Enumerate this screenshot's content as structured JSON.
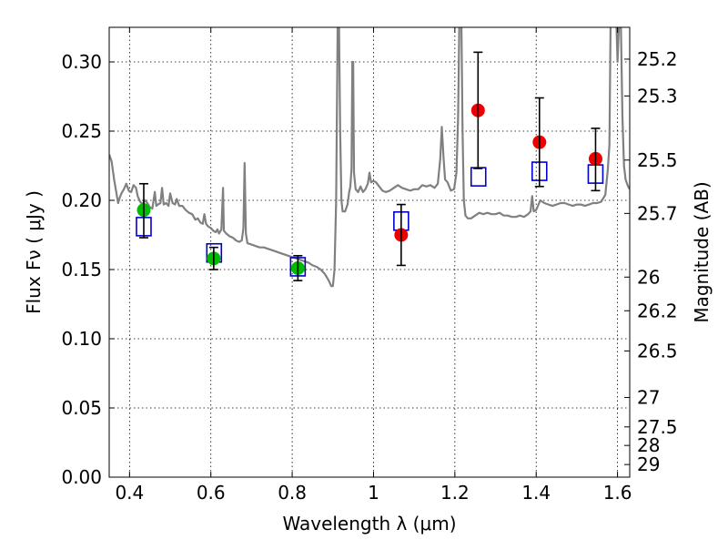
{
  "chart_data": {
    "type": "scatter",
    "xlabel": "Wavelength  λ (μm)",
    "ylabel": "Flux  Fν  ( μJy )",
    "ylabel_right": "Magnitude (AB)",
    "xlim": [
      0.35,
      1.63
    ],
    "ylim": [
      0.0,
      0.325
    ],
    "grid": true,
    "x_ticks": [
      {
        "value": 0.4,
        "label": "0.4"
      },
      {
        "value": 0.6,
        "label": "0.6"
      },
      {
        "value": 0.8,
        "label": "0.8"
      },
      {
        "value": 1.0,
        "label": "1"
      },
      {
        "value": 1.2,
        "label": "1.2"
      },
      {
        "value": 1.4,
        "label": "1.4"
      },
      {
        "value": 1.6,
        "label": "1.6"
      }
    ],
    "y_ticks": [
      {
        "value": 0.0,
        "label": "0.00"
      },
      {
        "value": 0.05,
        "label": "0.05"
      },
      {
        "value": 0.1,
        "label": "0.10"
      },
      {
        "value": 0.15,
        "label": "0.15"
      },
      {
        "value": 0.2,
        "label": "0.20"
      },
      {
        "value": 0.25,
        "label": "0.25"
      },
      {
        "value": 0.3,
        "label": "0.30"
      }
    ],
    "right_ticks": [
      {
        "value": 25.2,
        "label": "25.2"
      },
      {
        "value": 25.3,
        "label": "25.3"
      },
      {
        "value": 25.5,
        "label": "25.5"
      },
      {
        "value": 25.7,
        "label": "25.7"
      },
      {
        "value": 26.0,
        "label": "26"
      },
      {
        "value": 26.2,
        "label": "26.2"
      },
      {
        "value": 26.5,
        "label": "26.5"
      },
      {
        "value": 27.0,
        "label": "27"
      },
      {
        "value": 27.5,
        "label": "27.5"
      },
      {
        "value": 28.0,
        "label": "28"
      },
      {
        "value": 29.0,
        "label": "29"
      }
    ],
    "series": [
      {
        "kind": "line",
        "color": "#808080",
        "points": [
          [
            0.35,
            0.233
          ],
          [
            0.356,
            0.228
          ],
          [
            0.362,
            0.215
          ],
          [
            0.368,
            0.205
          ],
          [
            0.372,
            0.198
          ],
          [
            0.376,
            0.202
          ],
          [
            0.38,
            0.205
          ],
          [
            0.386,
            0.208
          ],
          [
            0.392,
            0.212
          ],
          [
            0.398,
            0.207
          ],
          [
            0.404,
            0.206
          ],
          [
            0.41,
            0.211
          ],
          [
            0.416,
            0.209
          ],
          [
            0.42,
            0.203
          ],
          [
            0.426,
            0.199
          ],
          [
            0.432,
            0.197
          ],
          [
            0.438,
            0.2
          ],
          [
            0.444,
            0.198
          ],
          [
            0.45,
            0.195
          ],
          [
            0.456,
            0.194
          ],
          [
            0.462,
            0.206
          ],
          [
            0.466,
            0.196
          ],
          [
            0.47,
            0.197
          ],
          [
            0.476,
            0.198
          ],
          [
            0.48,
            0.209
          ],
          [
            0.484,
            0.197
          ],
          [
            0.49,
            0.198
          ],
          [
            0.496,
            0.196
          ],
          [
            0.5,
            0.205
          ],
          [
            0.506,
            0.198
          ],
          [
            0.512,
            0.197
          ],
          [
            0.516,
            0.201
          ],
          [
            0.522,
            0.196
          ],
          [
            0.53,
            0.196
          ],
          [
            0.538,
            0.193
          ],
          [
            0.546,
            0.191
          ],
          [
            0.554,
            0.19
          ],
          [
            0.562,
            0.186
          ],
          [
            0.568,
            0.187
          ],
          [
            0.574,
            0.184
          ],
          [
            0.58,
            0.183
          ],
          [
            0.584,
            0.19
          ],
          [
            0.588,
            0.183
          ],
          [
            0.594,
            0.181
          ],
          [
            0.6,
            0.18
          ],
          [
            0.606,
            0.178
          ],
          [
            0.612,
            0.177
          ],
          [
            0.616,
            0.179
          ],
          [
            0.62,
            0.176
          ],
          [
            0.626,
            0.179
          ],
          [
            0.63,
            0.209
          ],
          [
            0.632,
            0.178
          ],
          [
            0.638,
            0.176
          ],
          [
            0.646,
            0.174
          ],
          [
            0.654,
            0.173
          ],
          [
            0.662,
            0.171
          ],
          [
            0.67,
            0.17
          ],
          [
            0.676,
            0.171
          ],
          [
            0.68,
            0.18
          ],
          [
            0.683,
            0.227
          ],
          [
            0.686,
            0.176
          ],
          [
            0.69,
            0.169
          ],
          [
            0.7,
            0.168
          ],
          [
            0.71,
            0.167
          ],
          [
            0.72,
            0.166
          ],
          [
            0.73,
            0.166
          ],
          [
            0.74,
            0.165
          ],
          [
            0.75,
            0.164
          ],
          [
            0.76,
            0.163
          ],
          [
            0.77,
            0.162
          ],
          [
            0.78,
            0.161
          ],
          [
            0.79,
            0.16
          ],
          [
            0.8,
            0.159
          ],
          [
            0.81,
            0.158
          ],
          [
            0.82,
            0.157
          ],
          [
            0.83,
            0.156
          ],
          [
            0.84,
            0.155
          ],
          [
            0.85,
            0.153
          ],
          [
            0.86,
            0.152
          ],
          [
            0.87,
            0.15
          ],
          [
            0.88,
            0.147
          ],
          [
            0.89,
            0.142
          ],
          [
            0.896,
            0.138
          ],
          [
            0.9,
            0.138
          ],
          [
            0.904,
            0.15
          ],
          [
            0.908,
            0.2
          ],
          [
            0.912,
            0.33
          ],
          [
            0.915,
            0.33
          ],
          [
            0.918,
            0.25
          ],
          [
            0.921,
            0.2
          ],
          [
            0.924,
            0.192
          ],
          [
            0.93,
            0.192
          ],
          [
            0.936,
            0.197
          ],
          [
            0.94,
            0.206
          ],
          [
            0.943,
            0.21
          ],
          [
            0.946,
            0.223
          ],
          [
            0.948,
            0.3
          ],
          [
            0.95,
            0.3
          ],
          [
            0.952,
            0.22
          ],
          [
            0.956,
            0.208
          ],
          [
            0.962,
            0.206
          ],
          [
            0.968,
            0.21
          ],
          [
            0.974,
            0.206
          ],
          [
            0.98,
            0.208
          ],
          [
            0.986,
            0.212
          ],
          [
            0.99,
            0.22
          ],
          [
            0.994,
            0.213
          ],
          [
            1.0,
            0.214
          ],
          [
            1.006,
            0.213
          ],
          [
            1.014,
            0.21
          ],
          [
            1.022,
            0.207
          ],
          [
            1.03,
            0.206
          ],
          [
            1.04,
            0.207
          ],
          [
            1.05,
            0.209
          ],
          [
            1.06,
            0.211
          ],
          [
            1.07,
            0.209
          ],
          [
            1.08,
            0.208
          ],
          [
            1.09,
            0.207
          ],
          [
            1.1,
            0.208
          ],
          [
            1.11,
            0.208
          ],
          [
            1.12,
            0.211
          ],
          [
            1.13,
            0.21
          ],
          [
            1.14,
            0.211
          ],
          [
            1.15,
            0.209
          ],
          [
            1.158,
            0.212
          ],
          [
            1.164,
            0.23
          ],
          [
            1.168,
            0.253
          ],
          [
            1.172,
            0.232
          ],
          [
            1.176,
            0.215
          ],
          [
            1.182,
            0.213
          ],
          [
            1.19,
            0.207
          ],
          [
            1.198,
            0.208
          ],
          [
            1.204,
            0.22
          ],
          [
            1.208,
            0.26
          ],
          [
            1.211,
            0.33
          ],
          [
            1.214,
            0.33
          ],
          [
            1.216,
            0.33
          ],
          [
            1.219,
            0.25
          ],
          [
            1.222,
            0.2
          ],
          [
            1.226,
            0.189
          ],
          [
            1.232,
            0.187
          ],
          [
            1.24,
            0.187
          ],
          [
            1.25,
            0.189
          ],
          [
            1.26,
            0.191
          ],
          [
            1.27,
            0.19
          ],
          [
            1.28,
            0.191
          ],
          [
            1.29,
            0.19
          ],
          [
            1.3,
            0.19
          ],
          [
            1.31,
            0.191
          ],
          [
            1.32,
            0.189
          ],
          [
            1.33,
            0.189
          ],
          [
            1.34,
            0.188
          ],
          [
            1.35,
            0.188
          ],
          [
            1.36,
            0.189
          ],
          [
            1.37,
            0.188
          ],
          [
            1.38,
            0.19
          ],
          [
            1.386,
            0.192
          ],
          [
            1.39,
            0.203
          ],
          [
            1.394,
            0.192
          ],
          [
            1.4,
            0.193
          ],
          [
            1.41,
            0.2
          ],
          [
            1.42,
            0.198
          ],
          [
            1.43,
            0.197
          ],
          [
            1.44,
            0.196
          ],
          [
            1.45,
            0.197
          ],
          [
            1.46,
            0.198
          ],
          [
            1.47,
            0.198
          ],
          [
            1.48,
            0.197
          ],
          [
            1.49,
            0.196
          ],
          [
            1.5,
            0.197
          ],
          [
            1.51,
            0.197
          ],
          [
            1.52,
            0.196
          ],
          [
            1.53,
            0.197
          ],
          [
            1.54,
            0.198
          ],
          [
            1.55,
            0.198
          ],
          [
            1.56,
            0.199
          ],
          [
            1.57,
            0.204
          ],
          [
            1.576,
            0.222
          ],
          [
            1.58,
            0.24
          ],
          [
            1.583,
            0.33
          ],
          [
            1.59,
            0.33
          ],
          [
            1.597,
            0.33
          ],
          [
            1.6,
            0.3
          ],
          [
            1.604,
            0.33
          ],
          [
            1.608,
            0.33
          ],
          [
            1.612,
            0.26
          ],
          [
            1.616,
            0.225
          ],
          [
            1.62,
            0.215
          ],
          [
            1.626,
            0.21
          ],
          [
            1.63,
            0.208
          ]
        ]
      },
      {
        "kind": "squares",
        "color": "#0000cc",
        "points": [
          [
            0.435,
            0.181
          ],
          [
            0.608,
            0.162
          ],
          [
            0.814,
            0.152
          ],
          [
            1.068,
            0.185
          ],
          [
            1.258,
            0.217
          ],
          [
            1.408,
            0.221
          ],
          [
            1.546,
            0.219
          ]
        ]
      },
      {
        "kind": "circles",
        "color": "#00bb00",
        "points": [
          [
            0.435,
            0.193
          ],
          [
            0.607,
            0.158
          ],
          [
            0.814,
            0.151
          ]
        ]
      },
      {
        "kind": "circles",
        "color": "#ee0000",
        "points": [
          [
            1.068,
            0.175
          ],
          [
            1.257,
            0.265
          ],
          [
            1.408,
            0.242
          ],
          [
            1.546,
            0.23
          ]
        ]
      },
      {
        "kind": "errorbars",
        "color": "#000000",
        "points": [
          {
            "x": 0.435,
            "low": 0.173,
            "high": 0.212
          },
          {
            "x": 0.607,
            "low": 0.15,
            "high": 0.166
          },
          {
            "x": 0.814,
            "low": 0.142,
            "high": 0.16
          },
          {
            "x": 1.068,
            "low": 0.153,
            "high": 0.197
          },
          {
            "x": 1.257,
            "low": 0.223,
            "high": 0.307
          },
          {
            "x": 1.408,
            "low": 0.21,
            "high": 0.274
          },
          {
            "x": 1.546,
            "low": 0.207,
            "high": 0.252
          }
        ]
      }
    ]
  }
}
